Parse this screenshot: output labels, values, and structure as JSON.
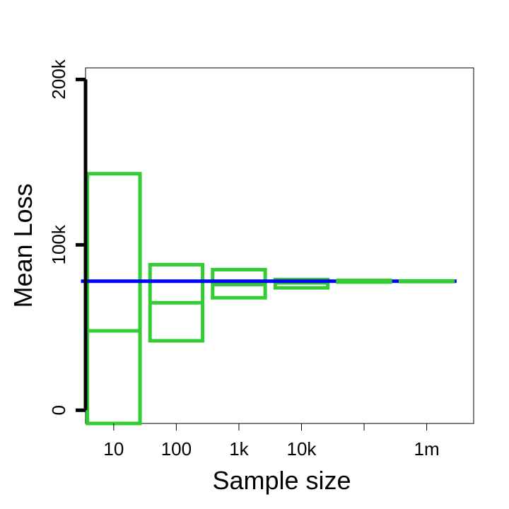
{
  "chart_data": {
    "type": "box",
    "title": "",
    "xlabel": "Sample size",
    "ylabel": "Mean Loss",
    "x_scale": "log10",
    "x_ticks": [
      {
        "value": 10,
        "label": "10"
      },
      {
        "value": 100,
        "label": "100"
      },
      {
        "value": 1000,
        "label": "1k"
      },
      {
        "value": 10000,
        "label": "10k"
      },
      {
        "value": 100000,
        "label": ""
      },
      {
        "value": 1000000,
        "label": "1m"
      }
    ],
    "y_ticks": [
      {
        "value": 0,
        "label": "0"
      },
      {
        "value": 100000,
        "label": "100k"
      },
      {
        "value": 200000,
        "label": "200k"
      }
    ],
    "ylim": [
      -8000,
      207000
    ],
    "xlim_log10": [
      0.55,
      6.75
    ],
    "reference_line": {
      "y": 78000,
      "x_from": 3,
      "x_to": 3000000,
      "color": "#0000ff"
    },
    "box_color": "#33cc33",
    "boxes": [
      {
        "sample_size": 10,
        "low": -8000,
        "mid": 48000,
        "high": 143000
      },
      {
        "sample_size": 100,
        "low": 42000,
        "mid": 65000,
        "high": 88000
      },
      {
        "sample_size": 1000,
        "low": 68000,
        "mid": 76000,
        "high": 85000
      },
      {
        "sample_size": 10000,
        "low": 74000,
        "mid": 77000,
        "high": 79000
      },
      {
        "sample_size": 100000,
        "low": 77500,
        "mid": 78000,
        "high": 78500
      },
      {
        "sample_size": 1000000,
        "low": 77800,
        "mid": 78000,
        "high": 78200
      }
    ]
  }
}
